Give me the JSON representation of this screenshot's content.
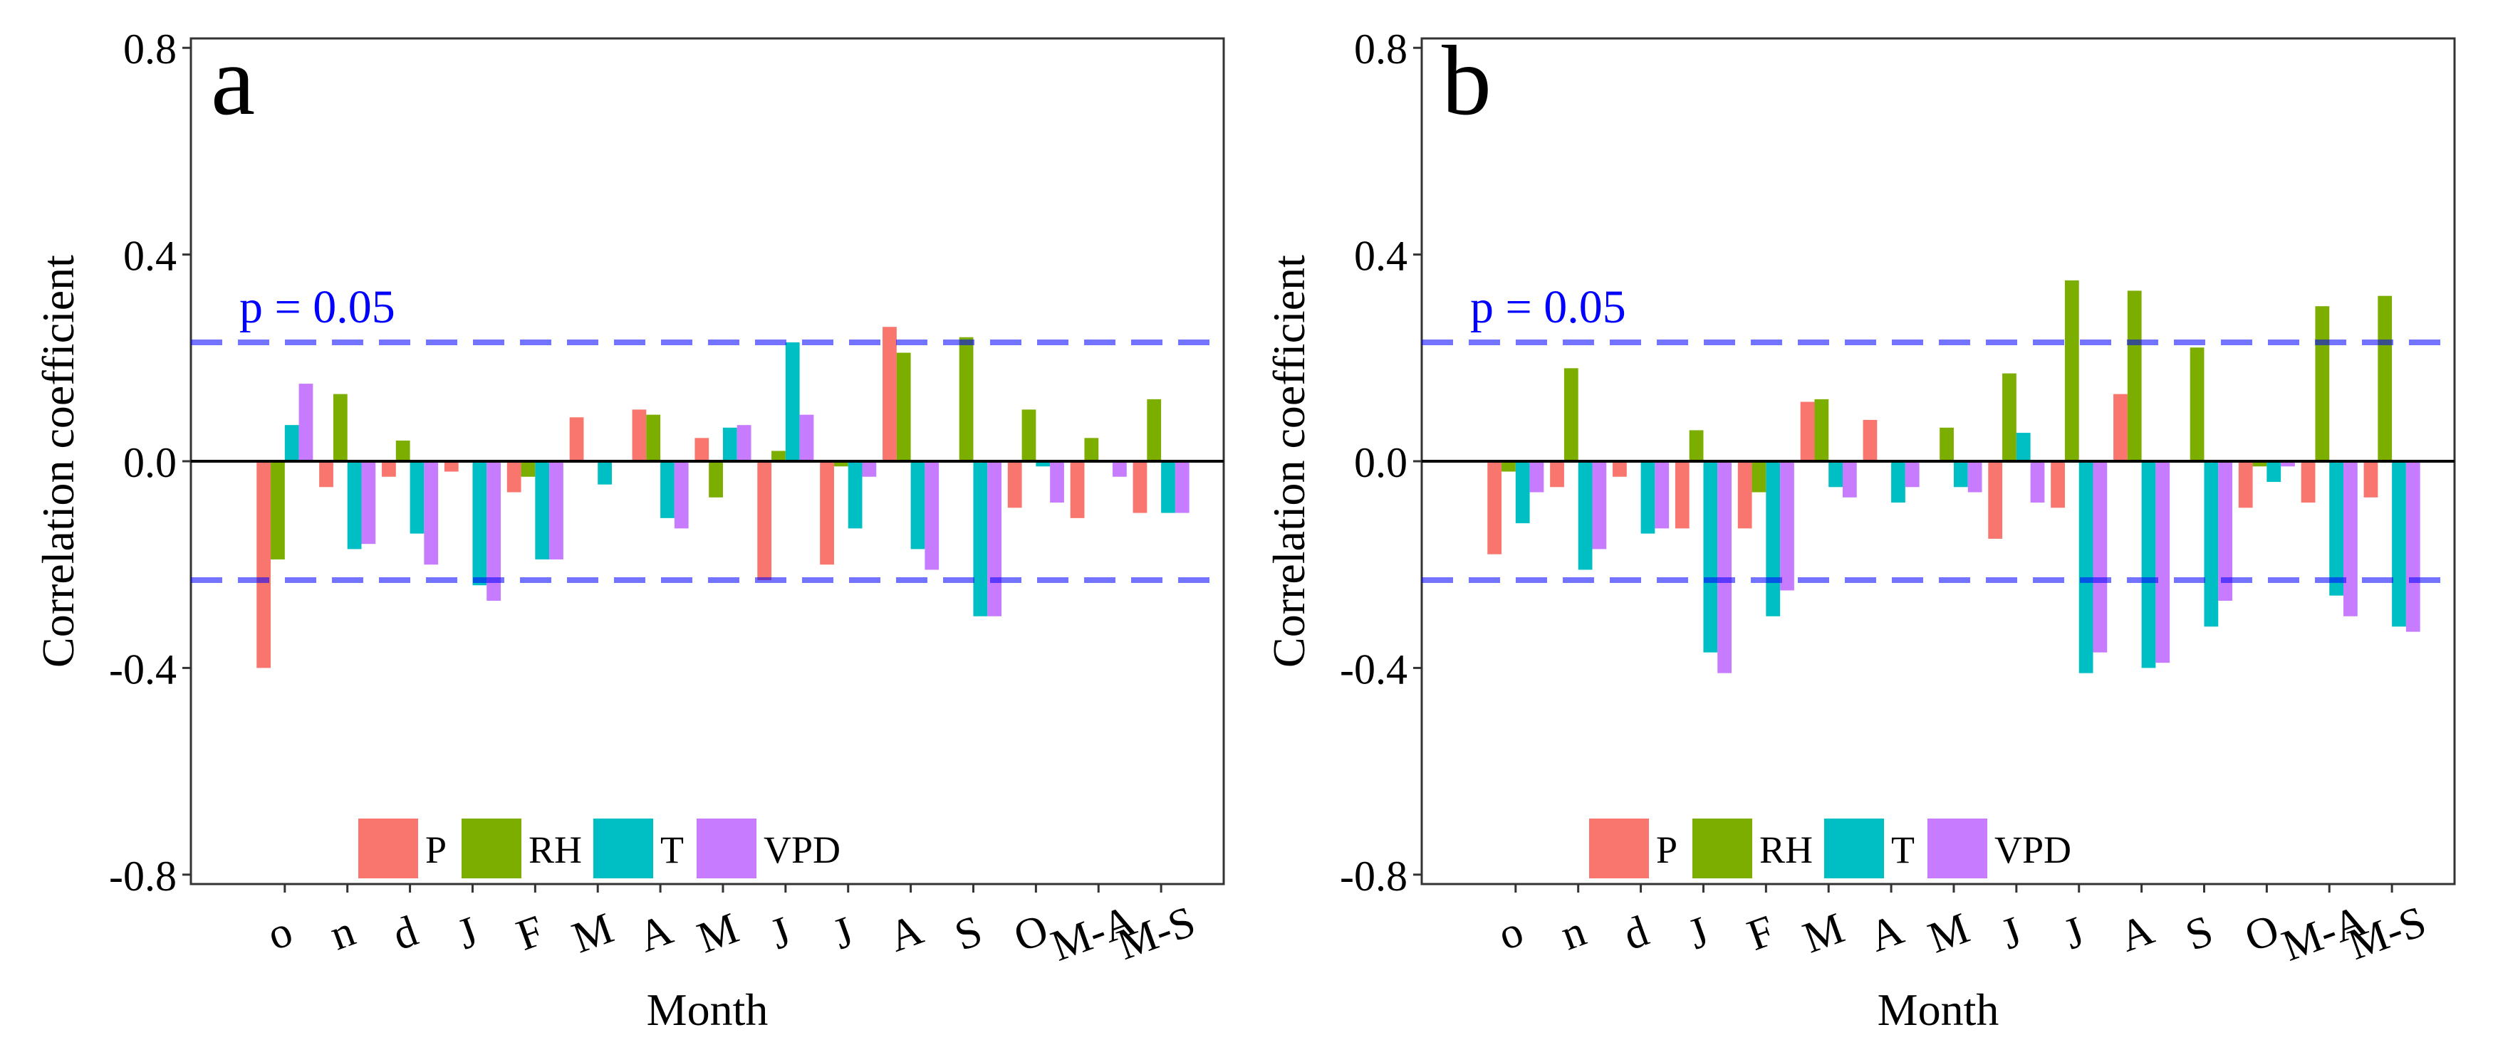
{
  "chart_data": [
    {
      "panel": "a",
      "type": "bar",
      "categories": [
        "o",
        "n",
        "d",
        "J",
        "F",
        "M",
        "A",
        "M",
        "J",
        "J",
        "A",
        "S",
        "O",
        "M-A",
        "M-S"
      ],
      "series": [
        {
          "name": "P",
          "values": [
            -0.4,
            -0.05,
            -0.03,
            -0.02,
            -0.06,
            0.085,
            0.1,
            0.045,
            -0.23,
            -0.2,
            0.26,
            0.0,
            -0.09,
            -0.11,
            -0.1
          ]
        },
        {
          "name": "RH",
          "values": [
            -0.19,
            0.13,
            0.04,
            0.0,
            -0.03,
            0.0,
            0.09,
            -0.07,
            0.02,
            -0.01,
            0.21,
            0.24,
            0.1,
            0.045,
            0.12
          ]
        },
        {
          "name": "T",
          "values": [
            0.07,
            -0.17,
            -0.14,
            -0.24,
            -0.19,
            -0.045,
            -0.11,
            0.065,
            0.23,
            -0.13,
            -0.17,
            -0.3,
            -0.01,
            0.0,
            -0.1
          ]
        },
        {
          "name": "VPD",
          "values": [
            0.15,
            -0.16,
            -0.2,
            -0.27,
            -0.19,
            0.0,
            -0.13,
            0.07,
            0.09,
            -0.03,
            -0.21,
            -0.3,
            -0.08,
            -0.03,
            -0.1
          ]
        }
      ],
      "ylim": [
        -0.8,
        0.8
      ],
      "yticks": [
        "-0.8",
        "-0.4",
        "0.0",
        "0.4",
        "0.8"
      ],
      "xlabel": "Month",
      "ylabel": "Correlation coefficient",
      "significance": {
        "label": "p = 0.05",
        "value": 0.23
      },
      "legend_position": "bottom"
    },
    {
      "panel": "b",
      "type": "bar",
      "categories": [
        "o",
        "n",
        "d",
        "J",
        "F",
        "M",
        "A",
        "M",
        "J",
        "J",
        "A",
        "S",
        "O",
        "M-A",
        "M-S"
      ],
      "series": [
        {
          "name": "P",
          "values": [
            -0.18,
            -0.05,
            -0.03,
            -0.13,
            -0.13,
            0.115,
            0.08,
            0.0,
            -0.15,
            -0.09,
            0.13,
            0.0,
            -0.09,
            -0.08,
            -0.07
          ]
        },
        {
          "name": "RH",
          "values": [
            -0.02,
            0.18,
            0.0,
            0.06,
            -0.06,
            0.12,
            0.0,
            0.065,
            0.17,
            0.35,
            0.33,
            0.22,
            -0.01,
            0.3,
            0.32
          ]
        },
        {
          "name": "T",
          "values": [
            -0.12,
            -0.21,
            -0.14,
            -0.37,
            -0.3,
            -0.05,
            -0.08,
            -0.05,
            0.055,
            -0.41,
            -0.4,
            -0.32,
            -0.04,
            -0.26,
            -0.32
          ]
        },
        {
          "name": "VPD",
          "values": [
            -0.06,
            -0.17,
            -0.13,
            -0.41,
            -0.25,
            -0.07,
            -0.05,
            -0.06,
            -0.08,
            -0.37,
            -0.39,
            -0.27,
            -0.01,
            -0.3,
            -0.33
          ]
        }
      ],
      "ylim": [
        -0.8,
        0.8
      ],
      "yticks": [
        "-0.8",
        "-0.4",
        "0.0",
        "0.4",
        "0.8"
      ],
      "xlabel": "Month",
      "ylabel": "Correlation coefficient",
      "significance": {
        "label": "p = 0.05",
        "value": 0.23
      },
      "legend_position": "bottom"
    }
  ],
  "colors": {
    "P": "#f8766d",
    "RH": "#7cae00",
    "T": "#00bfc4",
    "VPD": "#c77cff",
    "significance": "#0000ff"
  }
}
